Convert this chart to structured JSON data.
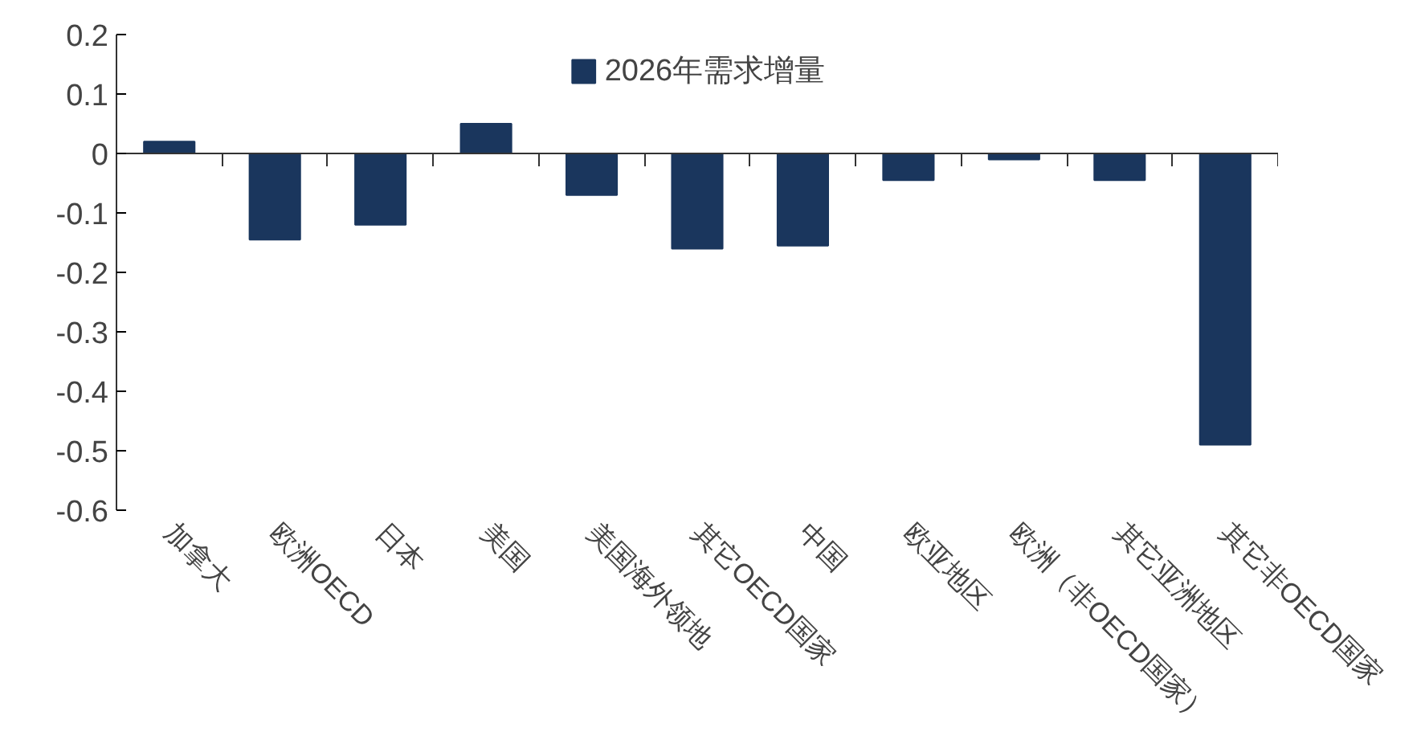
{
  "chart_data": {
    "type": "bar",
    "categories": [
      "加拿大",
      "欧洲OECD",
      "日本",
      "美国",
      "美国海外领地",
      "其它OECD国家",
      "中国",
      "欧亚地区",
      "欧洲（非OECD国家）",
      "其它亚洲地区",
      "其它非OECD国家"
    ],
    "series": [
      {
        "name": "2026年需求增量",
        "color": "#1a365d",
        "values": [
          0.02,
          -0.145,
          -0.12,
          0.05,
          -0.07,
          -0.16,
          -0.155,
          -0.045,
          -0.01,
          -0.045,
          -0.49
        ]
      }
    ],
    "ylim": [
      -0.6,
      0.2
    ],
    "yticks": [
      -0.6,
      -0.5,
      -0.4,
      -0.3,
      -0.2,
      -0.1,
      0,
      0.1,
      0.2
    ],
    "legend": "top"
  }
}
